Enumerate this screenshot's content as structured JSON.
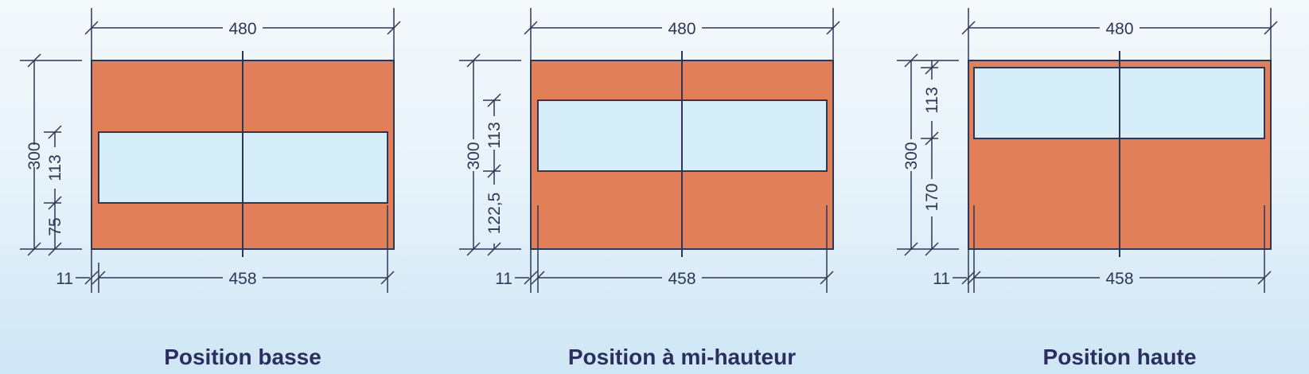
{
  "colors": {
    "wall": "#e07f58",
    "opening": "#d6eef9",
    "line": "#2f3656",
    "caption": "#2a2f5e"
  },
  "panels": [
    {
      "caption": "Position basse",
      "width_label": "480",
      "inner_width_label": "458",
      "height_label": "300",
      "opening_label": "113",
      "below_label": "75",
      "offset_label": "11"
    },
    {
      "caption": "Position à mi-hauteur",
      "width_label": "480",
      "inner_width_label": "458",
      "height_label": "300",
      "opening_label": "113",
      "below_label": "122,5",
      "offset_label": "11"
    },
    {
      "caption": "Position haute",
      "width_label": "480",
      "inner_width_label": "458",
      "height_label": "300",
      "opening_label": "113",
      "below_label": "170",
      "offset_label": "11"
    }
  ]
}
